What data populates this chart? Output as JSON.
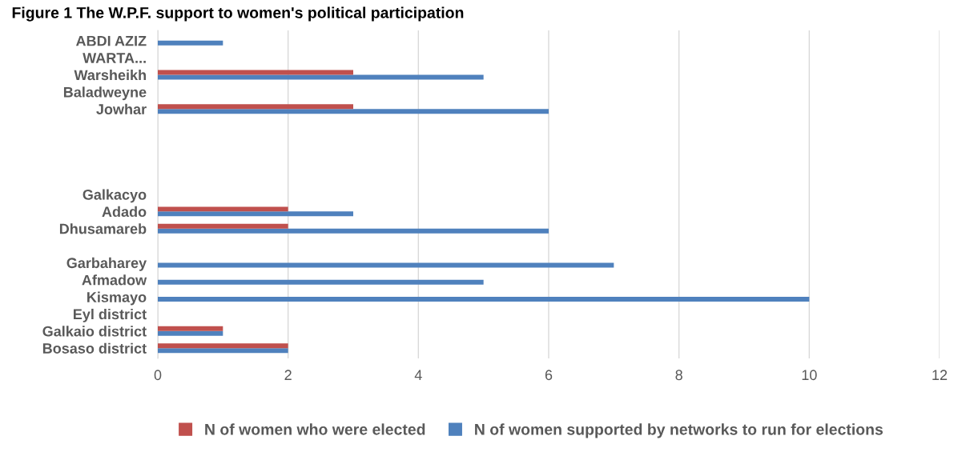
{
  "chart_data": {
    "type": "bar",
    "orientation": "horizontal",
    "title": "Figure 1 The W.P.F. support to women's political participation",
    "categories": [
      "ABDI AZIZ",
      "WARTA...",
      "Warsheikh",
      "Baladweyne",
      "Jowhar",
      null,
      null,
      null,
      null,
      "Galkacyo",
      "Adado",
      "Dhusamareb",
      null,
      "Garbaharey",
      "Afmadow",
      "Kismayo",
      "Eyl district",
      "Galkaio district",
      "Bosaso district"
    ],
    "series": [
      {
        "name": "N of women supported by networks to run for elections",
        "color": "#4f81bd",
        "values": [
          1,
          null,
          5,
          null,
          6,
          null,
          null,
          null,
          null,
          null,
          3,
          6,
          null,
          7,
          5,
          10,
          null,
          1,
          2
        ]
      },
      {
        "name": "N of women who were elected",
        "color": "#c0504d",
        "values": [
          null,
          null,
          3,
          null,
          3,
          null,
          null,
          null,
          null,
          null,
          2,
          2,
          null,
          null,
          null,
          null,
          null,
          1,
          2
        ]
      }
    ],
    "xlim": [
      0,
      12
    ],
    "xticks": [
      0,
      2,
      4,
      6,
      8,
      10,
      12
    ],
    "grid": "x",
    "legend": "bottom"
  }
}
